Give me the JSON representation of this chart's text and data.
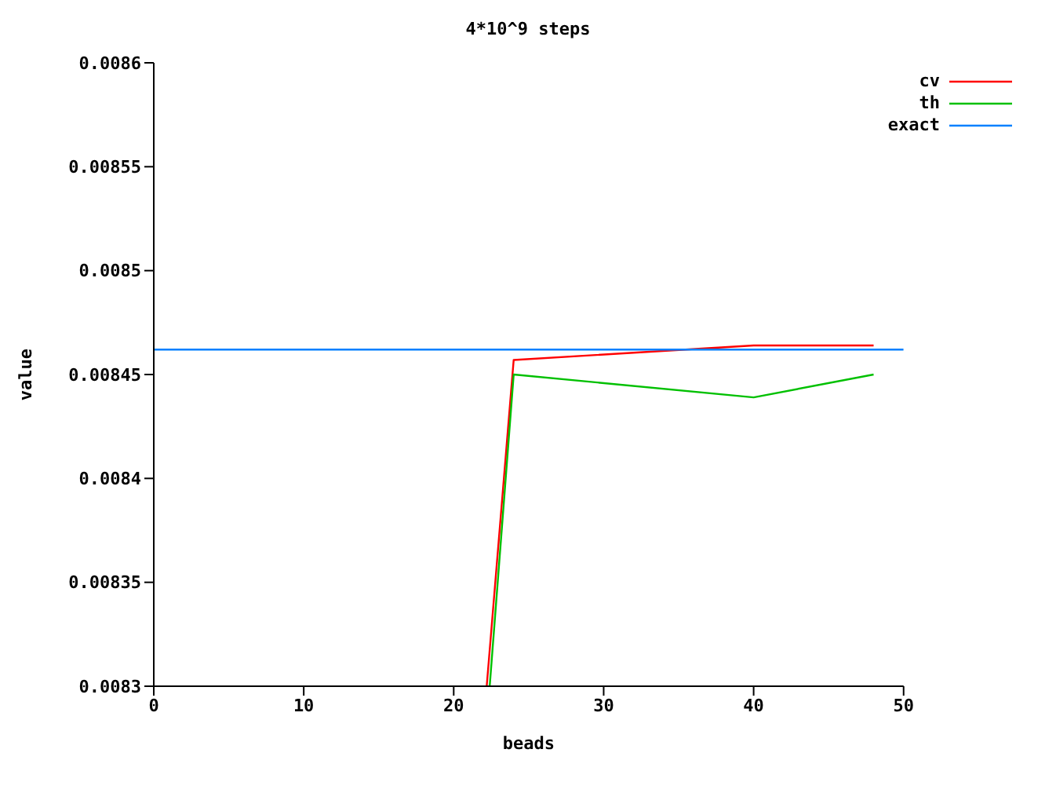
{
  "chart_data": {
    "type": "line",
    "title": "4*10^9 steps",
    "xlabel": "beads",
    "ylabel": "value",
    "xlim": [
      0,
      50
    ],
    "xticks": [
      0,
      10,
      20,
      30,
      40,
      50
    ],
    "ylim": [
      0.0083,
      0.0086
    ],
    "yticks": [
      0.0083,
      0.00835,
      0.0084,
      0.00845,
      0.0085,
      0.00855,
      0.0086
    ],
    "grid": false,
    "legend": "top right",
    "marker": "none",
    "line_style": "solid",
    "series": [
      {
        "name": "cv",
        "color": "#ff0000",
        "x": [
          22.2,
          24,
          40,
          48
        ],
        "values": [
          0.0083,
          0.008457,
          0.008464,
          0.008464
        ]
      },
      {
        "name": "th",
        "color": "#00c000",
        "x": [
          22.4,
          24,
          40,
          48
        ],
        "values": [
          0.0083,
          0.00845,
          0.008439,
          0.00845
        ]
      },
      {
        "name": "exact",
        "color": "#0080ff",
        "x": [
          0,
          50
        ],
        "values": [
          0.008462,
          0.008462
        ]
      }
    ]
  }
}
